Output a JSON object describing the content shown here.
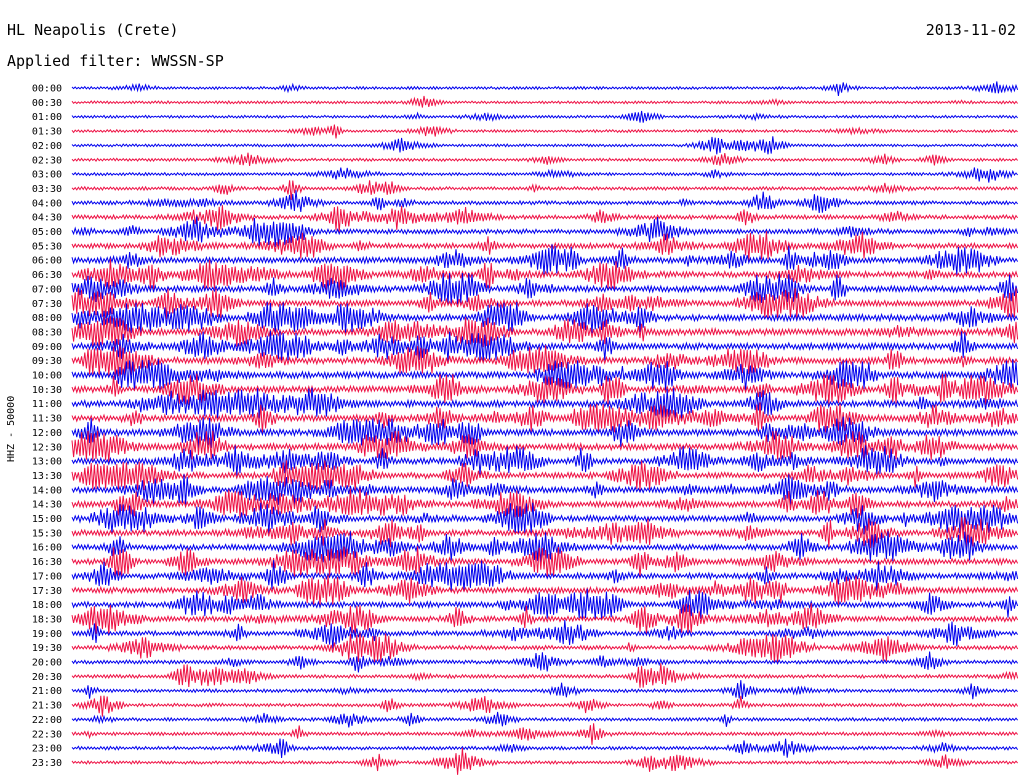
{
  "header": {
    "station": "HL Neapolis (Crete)",
    "date": "2013-11-02",
    "filter": "Applied filter: WWSSN-SP"
  },
  "chart_data": {
    "type": "line",
    "title": "HL Neapolis (Crete)",
    "date": "2013-11-02",
    "filter": "Applied filter: WWSSN-SP",
    "ylabel": "HHZ - 50000",
    "xlabel": "",
    "categories": [
      "00:00",
      "00:30",
      "01:00",
      "01:30",
      "02:00",
      "02:30",
      "03:00",
      "03:30",
      "04:00",
      "04:30",
      "05:00",
      "05:30",
      "06:00",
      "06:30",
      "07:00",
      "07:30",
      "08:00",
      "08:30",
      "09:00",
      "09:30",
      "10:00",
      "10:30",
      "11:00",
      "11:30",
      "12:00",
      "12:30",
      "13:00",
      "13:30",
      "14:00",
      "14:30",
      "15:00",
      "15:30",
      "16:00",
      "16:30",
      "17:00",
      "17:30",
      "18:00",
      "18:30",
      "19:00",
      "19:30",
      "20:00",
      "20:30",
      "21:00",
      "21:30",
      "22:00",
      "22:30",
      "23:00",
      "23:30"
    ],
    "trace_colors": [
      "#0000ee",
      "#ee1144"
    ],
    "activity_level": [
      0.15,
      0.15,
      0.15,
      0.15,
      0.15,
      0.2,
      0.2,
      0.3,
      0.4,
      0.5,
      0.6,
      0.75,
      0.85,
      0.9,
      0.9,
      0.9,
      1.0,
      1.0,
      1.0,
      1.0,
      1.0,
      1.0,
      1.0,
      1.0,
      1.0,
      1.0,
      0.9,
      0.9,
      0.9,
      0.9,
      0.85,
      0.85,
      0.85,
      0.85,
      0.85,
      0.85,
      0.8,
      0.75,
      0.6,
      0.5,
      0.4,
      0.35,
      0.3,
      0.3,
      0.3,
      0.3,
      0.3,
      0.25
    ],
    "grid": false,
    "legend": "none"
  }
}
